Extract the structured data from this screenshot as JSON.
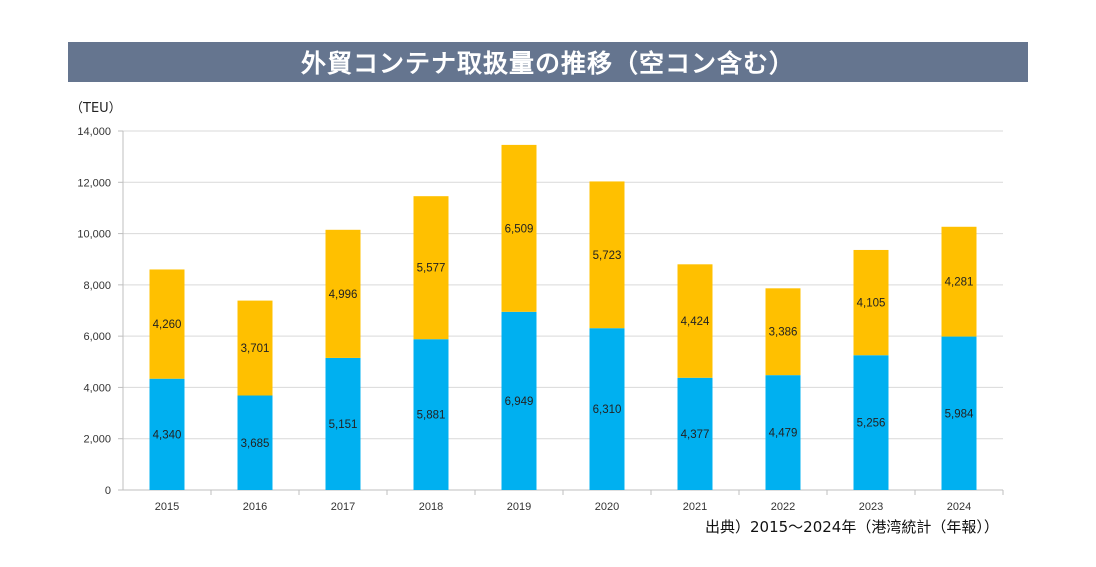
{
  "chart_data": {
    "type": "bar",
    "stacked": true,
    "title": "外貿コンテナ取扱量の推移（空コン含む）",
    "ylabel": "（TEU）",
    "xlabel": "",
    "categories": [
      "2015",
      "2016",
      "2017",
      "2018",
      "2019",
      "2020",
      "2021",
      "2022",
      "2023",
      "2024"
    ],
    "series": [
      {
        "name": "lower",
        "color": "#00b0f0",
        "values": [
          4340,
          3685,
          5151,
          5881,
          6949,
          6310,
          4377,
          4479,
          5256,
          5984
        ],
        "labels": [
          "4,340",
          "3,685",
          "5,151",
          "5,881",
          "6,949",
          "6,310",
          "4,377",
          "4,479",
          "5,256",
          "5,984"
        ]
      },
      {
        "name": "upper",
        "color": "#ffc000",
        "values": [
          4260,
          3701,
          4996,
          5577,
          6509,
          5723,
          4424,
          3386,
          4105,
          4281
        ],
        "labels": [
          "4,260",
          "3,701",
          "4,996",
          "5,577",
          "6,509",
          "5,723",
          "4,424",
          "3,386",
          "4,105",
          "4,281"
        ]
      }
    ],
    "ylim": [
      0,
      14000
    ],
    "yticks": [
      0,
      2000,
      4000,
      6000,
      8000,
      10000,
      12000,
      14000
    ],
    "ytick_labels": [
      "0",
      "2,000",
      "4,000",
      "6,000",
      "8,000",
      "10,000",
      "12,000",
      "14,000"
    ],
    "grid": true,
    "legend": "none",
    "source_note": "出典）2015～2024年（港湾統計（年報））"
  },
  "header": {
    "title": "外貿コンテナ取扱量の推移（空コン含む）"
  },
  "axis": {
    "unit": "（TEU）"
  },
  "footer": {
    "source": "出典）2015～2024年（港湾統計（年報））"
  }
}
